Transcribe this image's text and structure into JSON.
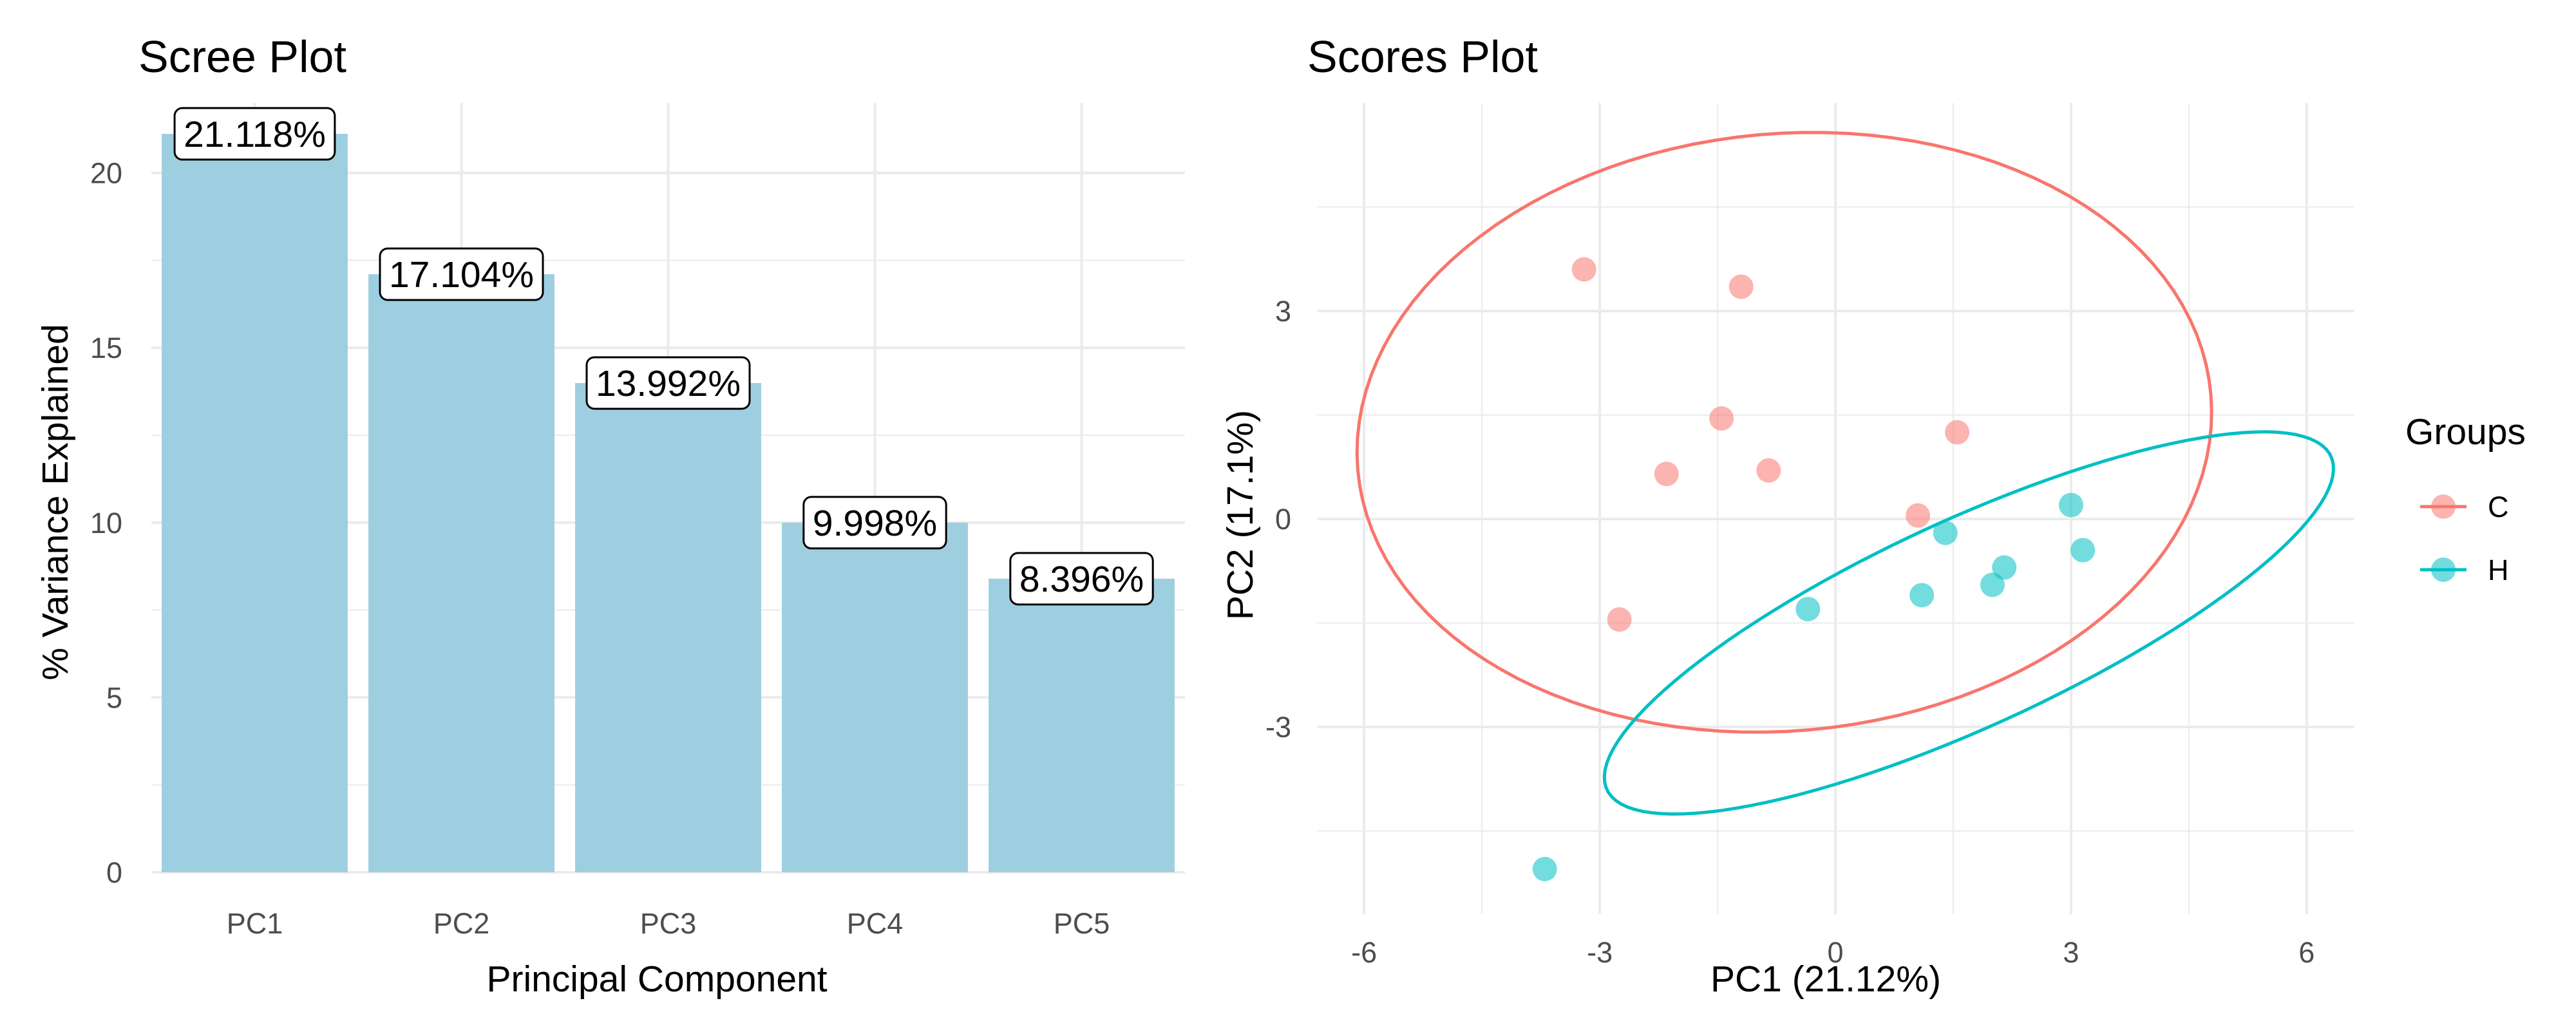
{
  "chart_data": [
    {
      "type": "bar",
      "title": "Scree Plot",
      "xlabel": "Principal Component",
      "ylabel": "% Variance Explained",
      "categories": [
        "PC1",
        "PC2",
        "PC3",
        "PC4",
        "PC5"
      ],
      "values": [
        21.118,
        17.104,
        13.992,
        9.998,
        8.396
      ],
      "data_labels": [
        "21.118%",
        "17.104%",
        "13.992%",
        "9.998%",
        "8.396%"
      ],
      "ylim": [
        0,
        22
      ],
      "yticks": [
        0,
        5,
        10,
        15,
        20
      ],
      "bar_color": "#9ecfe0",
      "grid": true
    },
    {
      "type": "scatter",
      "title": "Scores Plot",
      "xlabel": "PC1 (21.12%)",
      "ylabel": "PC2 (17.1%)",
      "xlim": [
        -6.6,
        6.6
      ],
      "ylim": [
        -5.7,
        6.0
      ],
      "xticks": [
        -6,
        -3,
        0,
        3,
        6
      ],
      "yticks": [
        -3,
        0,
        3
      ],
      "xtick_labels": [
        "-6",
        "-3",
        "0",
        "3",
        "6"
      ],
      "ytick_labels": [
        "-3",
        "0",
        "3"
      ],
      "grid": true,
      "legend": {
        "title": "Groups",
        "position": "right"
      },
      "series": [
        {
          "name": "C",
          "color": "#F8766D",
          "x": [
            -3.2,
            -1.2,
            -1.45,
            -0.85,
            -2.15,
            1.55,
            1.05,
            -2.75
          ],
          "y": [
            3.6,
            3.35,
            1.45,
            0.7,
            0.65,
            1.25,
            0.05,
            -1.45
          ],
          "ellipse": {
            "center": [
              -0.65,
              1.25
            ],
            "rx": 5.46,
            "ry": 4.3,
            "angle_deg": 8
          }
        },
        {
          "name": "H",
          "color": "#00BFC4",
          "x": [
            -0.35,
            1.1,
            1.4,
            2.0,
            2.15,
            3.0,
            3.15,
            -3.7
          ],
          "y": [
            -1.3,
            -1.1,
            -0.2,
            -0.95,
            -0.7,
            0.2,
            -0.45,
            -5.05
          ],
          "ellipse": {
            "center": [
              1.7,
              -1.5
            ],
            "rx": 5.2,
            "ry": 1.45,
            "angle_deg": 28
          }
        }
      ]
    }
  ]
}
